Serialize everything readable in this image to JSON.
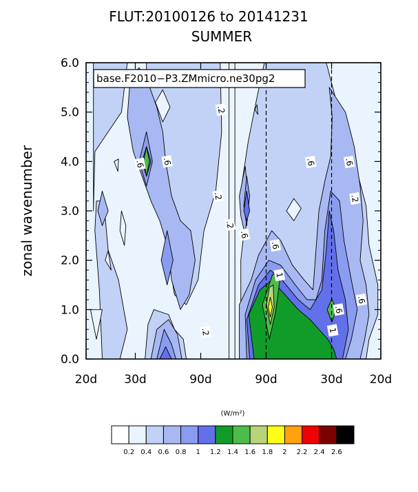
{
  "chart_data": {
    "type": "contour",
    "title": "FLUT:20100126 to 20141231",
    "subtitle": "SUMMER",
    "legend_box": "base.F2010−P3.ZMmicro.ne30pg2",
    "ylabel": "zonal wavenumber",
    "xlabel": "",
    "x_tick_labels": [
      "20d",
      "30d",
      "90d",
      "90d",
      "30d",
      "20d"
    ],
    "x_ticks": [
      -0.05,
      -0.0333,
      -0.0111,
      0.0111,
      0.0333,
      0.05
    ],
    "x_dashed_lines": [
      0.0111,
      0.0333
    ],
    "xlim": [
      -0.05,
      0.05
    ],
    "y_tick_labels": [
      "0.0",
      "1.0",
      "2.0",
      "3.0",
      "4.0",
      "5.0",
      "6.0"
    ],
    "y_ticks": [
      0,
      1,
      2,
      3,
      4,
      5,
      6
    ],
    "ylim": [
      0,
      6
    ],
    "levels": [
      0.2,
      0.4,
      0.6,
      0.8,
      1.0,
      1.2,
      1.4,
      1.6,
      1.8,
      2.0,
      2.2,
      2.4,
      2.6
    ],
    "colorbar_units": "(W/m²)",
    "colorbar_tick_labels": [
      "0.2",
      "0.4",
      "0.6",
      "0.8",
      "1",
      "1.2",
      "1.4",
      "1.6",
      "1.8",
      "2",
      "2.2",
      "2.4",
      "2.6"
    ],
    "colorbar_colors": [
      "#ffffff",
      "#eaf4fe",
      "#c2d2f6",
      "#a8b8f2",
      "#8a9cf0",
      "#6270ea",
      "#119c2a",
      "#4ebc4a",
      "#b8d47a",
      "#ffff18",
      "#ffa20e",
      "#ee0202",
      "#7a0202",
      "#000000"
    ],
    "contour_labels": [
      {
        "text": ".6",
        "x": -0.0317,
        "y": 3.95
      },
      {
        "text": ".6",
        "x": -0.0225,
        "y": 4.0
      },
      {
        "text": ".2",
        "x": -0.0042,
        "y": 5.05
      },
      {
        "text": ".2",
        "x": -0.0052,
        "y": 3.3
      },
      {
        "text": ".2",
        "x": -0.0012,
        "y": 2.72
      },
      {
        "text": ".6",
        "x": 0.0037,
        "y": 2.52
      },
      {
        "text": ".6",
        "x": 0.0142,
        "y": 2.3
      },
      {
        "text": "1",
        "x": 0.0156,
        "y": 1.7
      },
      {
        "text": ".2",
        "x": -0.0095,
        "y": 0.55
      },
      {
        "text": ".6",
        "x": 0.0262,
        "y": 3.99
      },
      {
        "text": ".6",
        "x": 0.0393,
        "y": 3.99
      },
      {
        "text": ".2",
        "x": 0.0412,
        "y": 3.25
      },
      {
        "text": ".6",
        "x": 0.0357,
        "y": 1.0
      },
      {
        "text": ".6",
        "x": 0.0434,
        "y": 1.2
      },
      {
        "text": "1",
        "x": 0.0337,
        "y": 0.58
      }
    ]
  }
}
